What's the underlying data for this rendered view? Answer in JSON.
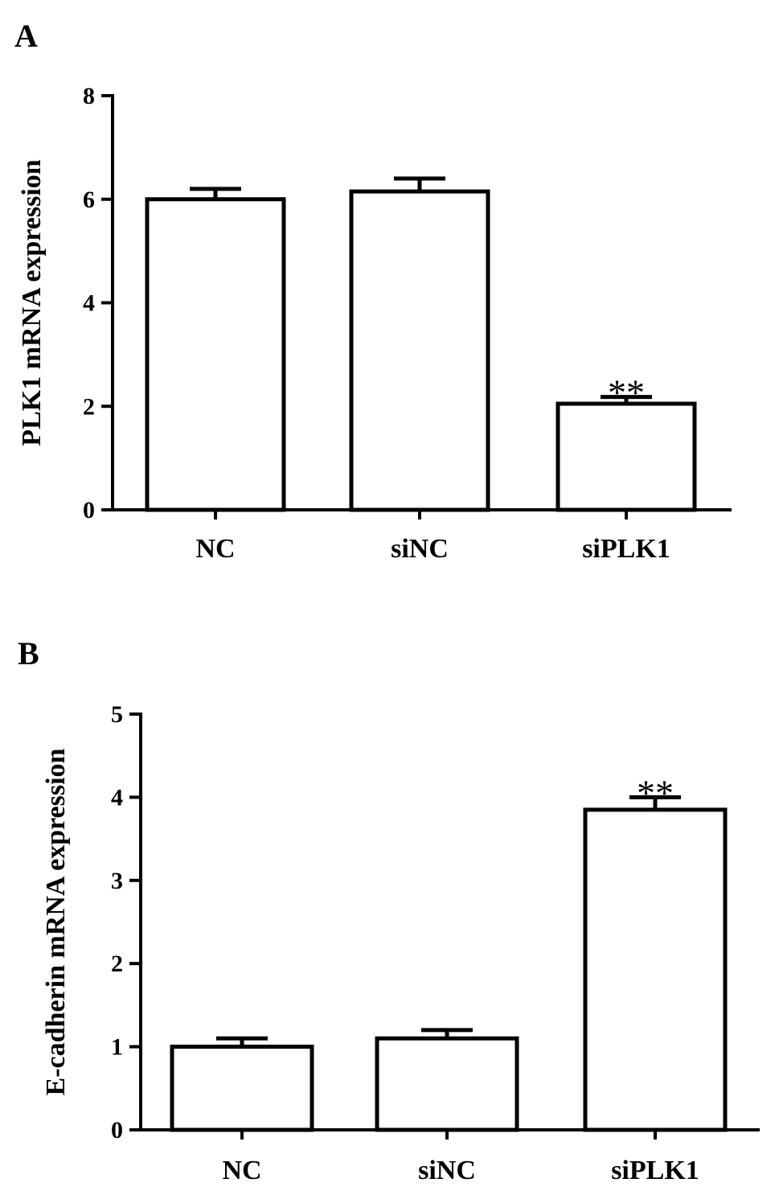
{
  "chart_data": [
    {
      "type": "bar",
      "panel": "A",
      "categories": [
        "NC",
        "siNC",
        "siPLK1"
      ],
      "values": [
        6.0,
        6.15,
        2.05
      ],
      "errors": [
        0.2,
        0.25,
        0.13
      ],
      "significance": [
        "",
        "",
        "**"
      ],
      "ylabel": "PLK1 mRNA expression",
      "ylim": [
        0,
        8
      ],
      "yticks": [
        "0",
        "2",
        "4",
        "6",
        "8"
      ],
      "grid": false
    },
    {
      "type": "bar",
      "panel": "B",
      "categories": [
        "NC",
        "siNC",
        "siPLK1"
      ],
      "values": [
        1.0,
        1.1,
        3.85
      ],
      "errors": [
        0.1,
        0.1,
        0.15
      ],
      "significance": [
        "",
        "",
        "**"
      ],
      "ylabel": "E-cadherin mRNA expression",
      "ylim": [
        0,
        5
      ],
      "yticks": [
        "0",
        "1",
        "2",
        "3",
        "4",
        "5"
      ],
      "grid": false
    }
  ]
}
